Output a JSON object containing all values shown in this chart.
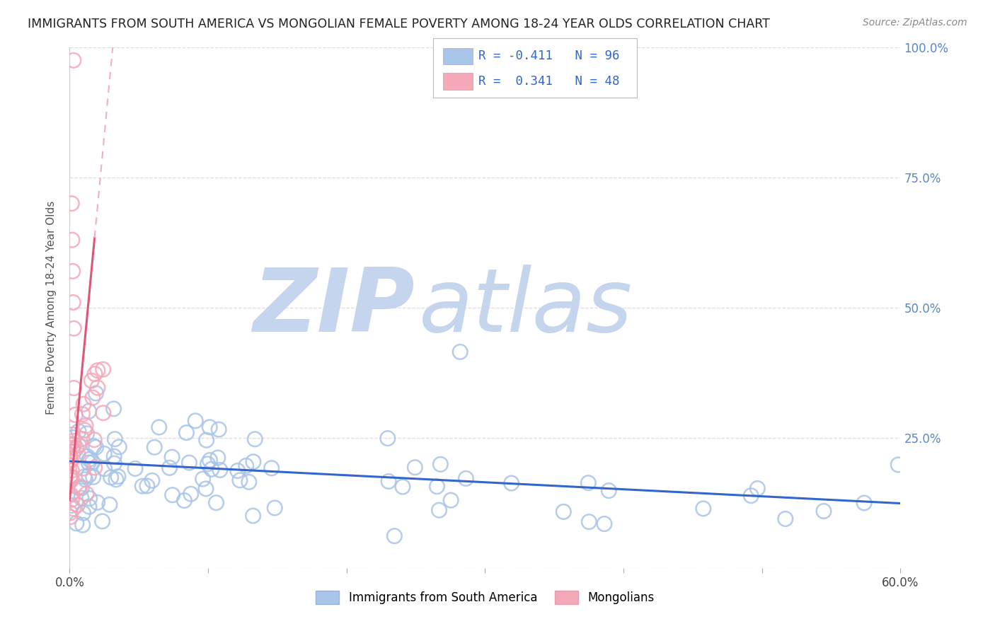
{
  "title": "IMMIGRANTS FROM SOUTH AMERICA VS MONGOLIAN FEMALE POVERTY AMONG 18-24 YEAR OLDS CORRELATION CHART",
  "source": "Source: ZipAtlas.com",
  "ylabel": "Female Poverty Among 18-24 Year Olds",
  "blue_label": "Immigrants from South America",
  "pink_label": "Mongolians",
  "blue_R": -0.411,
  "blue_N": 96,
  "pink_R": 0.341,
  "pink_N": 48,
  "blue_color": "#a8c4e8",
  "pink_color": "#f4a8b8",
  "blue_edge_color": "#7aaad0",
  "pink_edge_color": "#e888a0",
  "blue_line_color": "#3366cc",
  "pink_line_color": "#e05575",
  "pink_dash_color": "#f0b0c0",
  "text_color_blue": "#3366cc",
  "xlim": [
    0.0,
    0.6
  ],
  "ylim": [
    0.0,
    1.0
  ],
  "background_color": "#ffffff",
  "watermark_zip_color": "#c5d5ee",
  "watermark_atlas_color": "#c5d5ee",
  "grid_color": "#dddddd",
  "right_tick_color": "#5588cc",
  "title_fontsize": 12.5,
  "source_fontsize": 10,
  "legend_text_color": "#3366cc"
}
